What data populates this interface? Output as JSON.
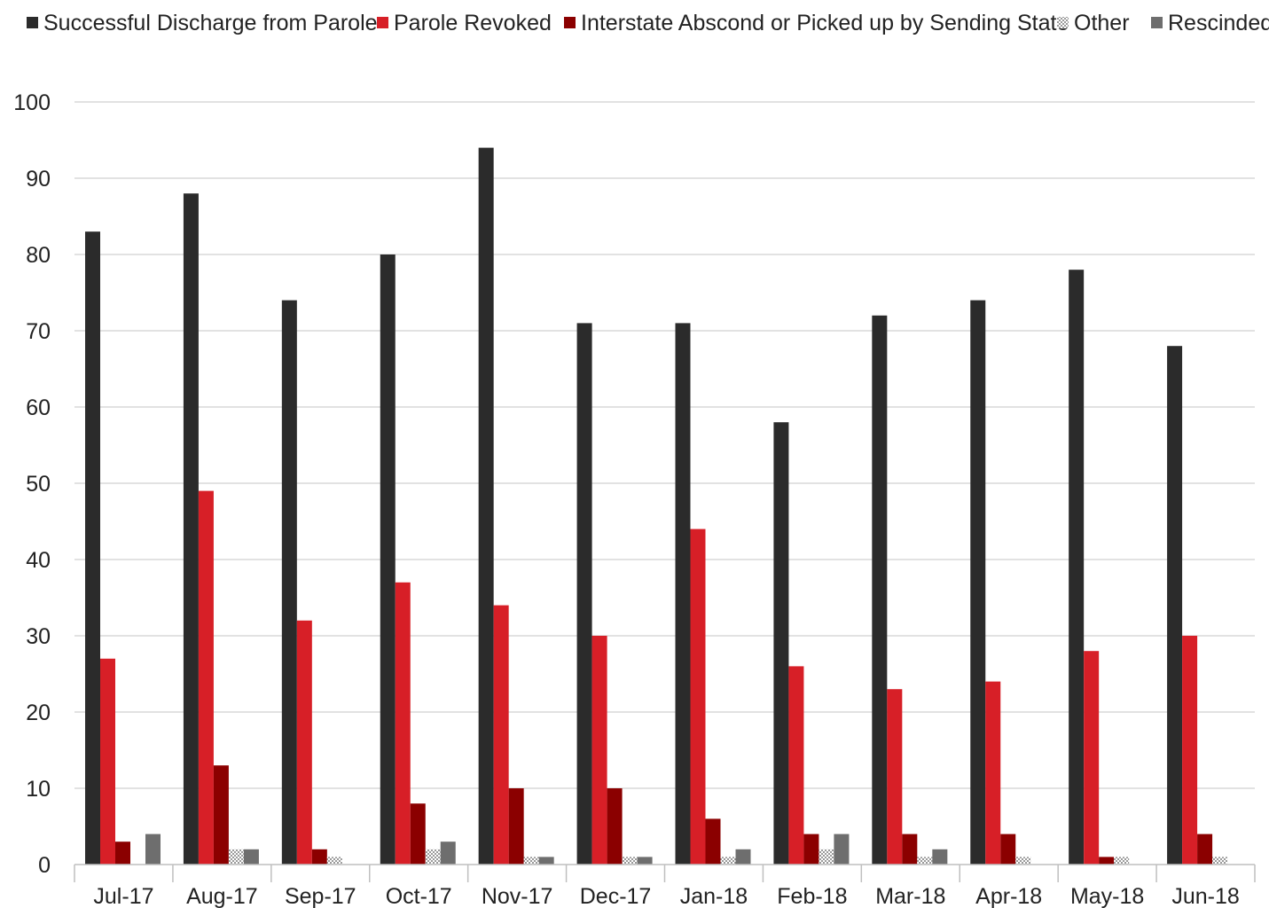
{
  "chart_data": {
    "type": "bar",
    "title": "",
    "xlabel": "",
    "ylabel": "",
    "ylim": [
      0,
      100
    ],
    "yticks": [
      0,
      10,
      20,
      30,
      40,
      50,
      60,
      70,
      80,
      90,
      100
    ],
    "grid": "horizontal",
    "legend_position": "top",
    "categories": [
      "Jul-17",
      "Aug-17",
      "Sep-17",
      "Oct-17",
      "Nov-17",
      "Dec-17",
      "Jan-18",
      "Feb-18",
      "Mar-18",
      "Apr-18",
      "May-18",
      "Jun-18"
    ],
    "series": [
      {
        "name": "Successful Discharge from Parole",
        "color": "#2b2b2b",
        "pattern": "solid",
        "values": [
          83,
          88,
          74,
          80,
          94,
          71,
          71,
          58,
          72,
          74,
          78,
          68
        ]
      },
      {
        "name": "Parole Revoked",
        "color": "#d71f27",
        "pattern": "solid",
        "values": [
          27,
          49,
          32,
          37,
          34,
          30,
          44,
          26,
          23,
          24,
          28,
          30
        ]
      },
      {
        "name": "Interstate Abscond or Picked up by Sending State",
        "color": "#8b0000",
        "pattern": "solid",
        "values": [
          3,
          13,
          2,
          8,
          10,
          10,
          6,
          4,
          4,
          4,
          1,
          4
        ]
      },
      {
        "name": "Other",
        "color": "#9a9a9a",
        "pattern": "dotted",
        "values": [
          0,
          2,
          1,
          2,
          1,
          1,
          1,
          2,
          1,
          1,
          1,
          1
        ]
      },
      {
        "name": "Rescinded",
        "color": "#6e6e6e",
        "pattern": "solid",
        "values": [
          4,
          2,
          0,
          3,
          1,
          1,
          2,
          4,
          2,
          0,
          0,
          0
        ]
      }
    ]
  }
}
